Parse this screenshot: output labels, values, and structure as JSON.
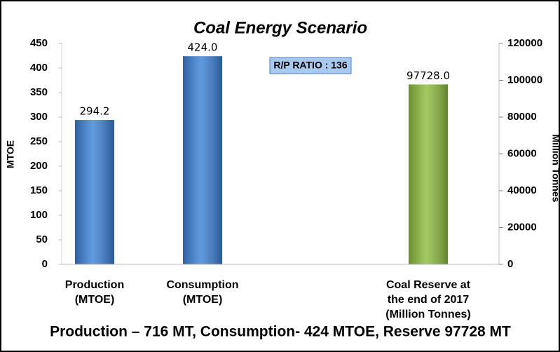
{
  "chart_data": {
    "type": "bar",
    "title": "Coal Energy Scenario",
    "ylabel": "MTOE",
    "y2label": "Million Tonnes",
    "categories": [
      [
        "Production",
        "(MTOE)"
      ],
      [
        "Consumption",
        "(MTOE)"
      ],
      null,
      [
        "Coal Reserve at",
        "the end of 2017",
        "(Million Tonnes)"
      ]
    ],
    "series": [
      {
        "name": "MTOE",
        "color": "#3b7fd6",
        "values": [
          294.2,
          424.0,
          null,
          null
        ],
        "value_labels": [
          "294.2",
          "424.0",
          null,
          null
        ]
      },
      {
        "name": "Million Tonnes",
        "color": "#8dbb3c",
        "axis": "y2",
        "values": [
          null,
          null,
          null,
          97728
        ],
        "value_labels": [
          null,
          null,
          null,
          "97728.0"
        ]
      }
    ],
    "ylim": [
      0,
      450
    ],
    "yticks": [
      0,
      50,
      100,
      150,
      200,
      250,
      300,
      350,
      400,
      450
    ],
    "y2lim": [
      0,
      120000
    ],
    "y2ticks": [
      0,
      20000,
      40000,
      60000,
      80000,
      100000,
      120000
    ],
    "annotations": [
      "R/P RATIO : 136"
    ],
    "footer": "Production – 716 MT, Consumption- 424 MTOE, Reserve 97728 MT"
  }
}
